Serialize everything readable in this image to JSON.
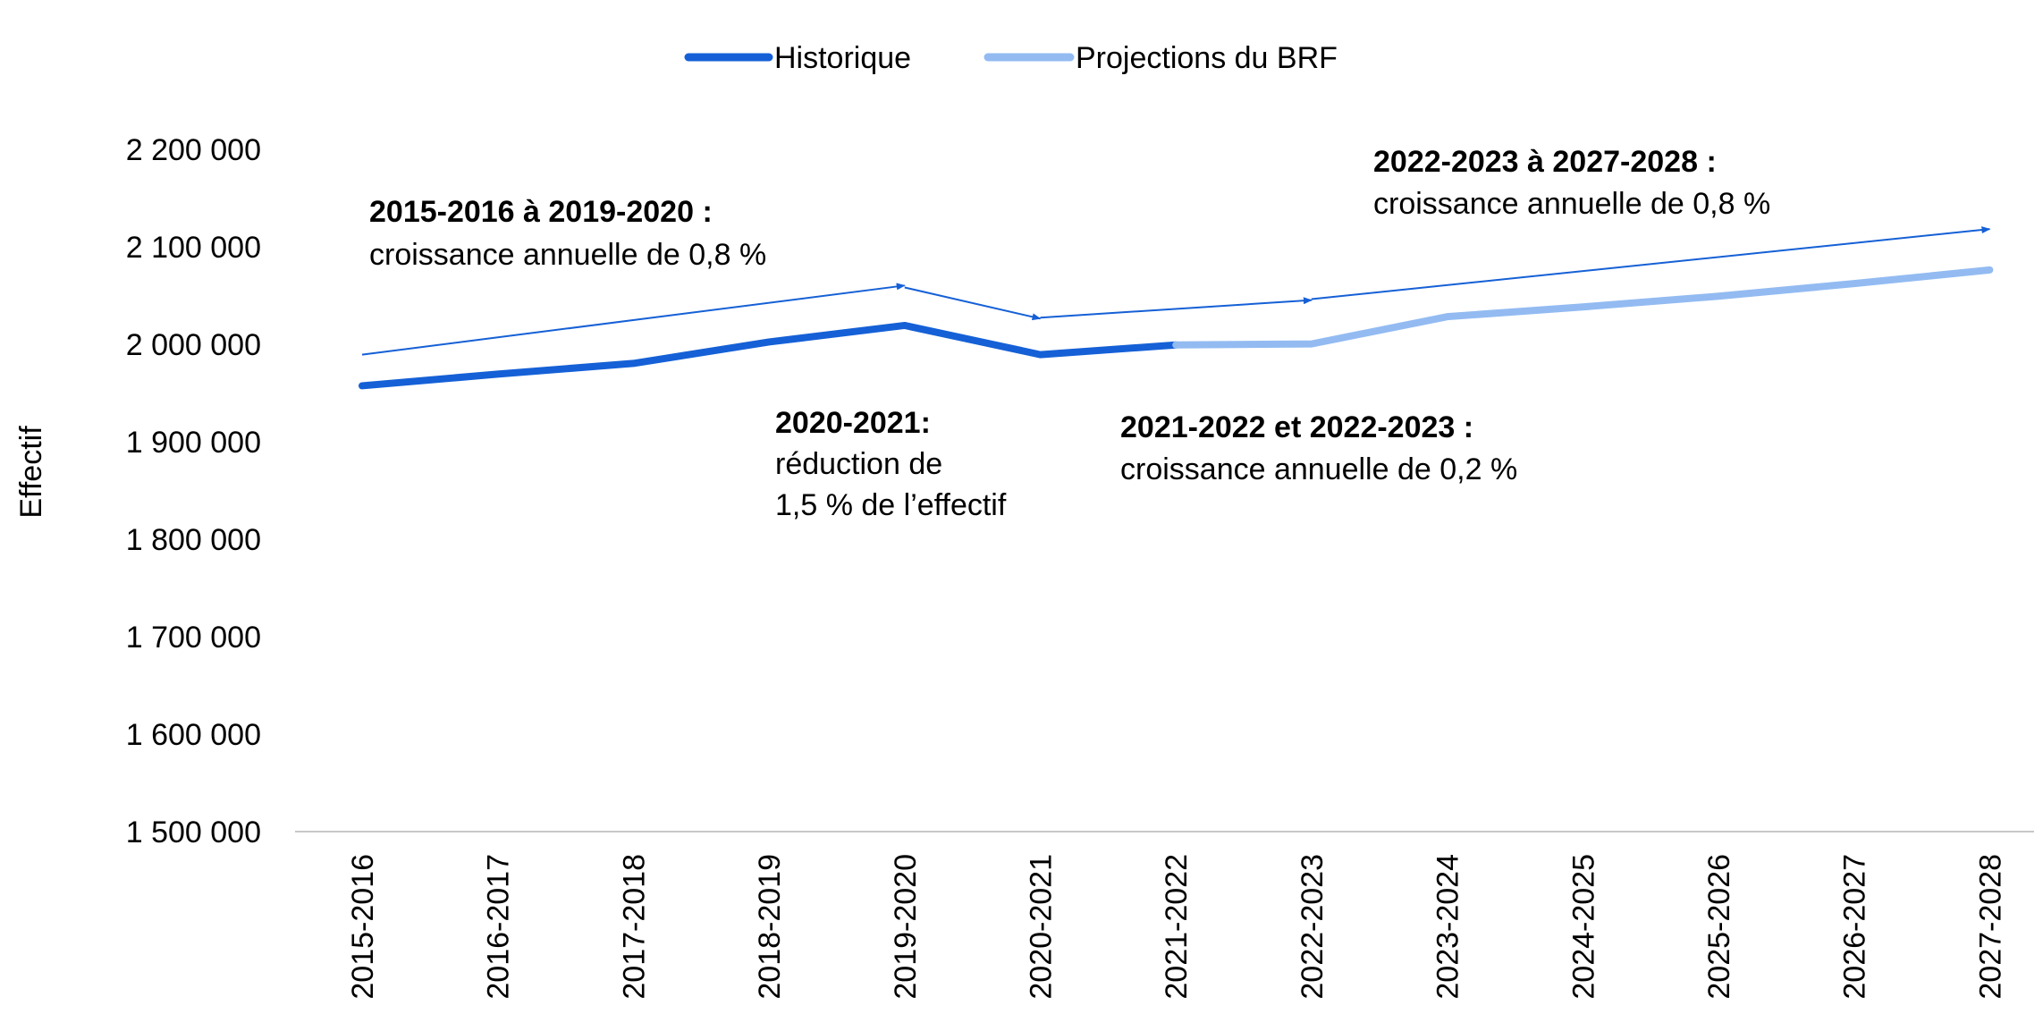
{
  "chart_data": {
    "type": "line",
    "ylabel": "Effectif",
    "xlabel": "",
    "ylim": [
      1500000,
      2200000
    ],
    "yticks": [
      1500000,
      1600000,
      1700000,
      1800000,
      1900000,
      2000000,
      2100000,
      2200000
    ],
    "ytick_labels": [
      "1 500 000",
      "1 600 000",
      "1 700 000",
      "1 800 000",
      "1 900 000",
      "2 000 000",
      "2 100 000",
      "2 200 000"
    ],
    "categories": [
      "2015-2016",
      "2016-2017",
      "2017-2018",
      "2018-2019",
      "2019-2020",
      "2020-2021",
      "2021-2022",
      "2022-2023",
      "2023-2024",
      "2024-2025",
      "2025-2026",
      "2026-2027",
      "2027-2028"
    ],
    "series": [
      {
        "name": "Historique",
        "color": "#1560d6",
        "values": [
          1958000,
          1970000,
          1981000,
          2003000,
          2020000,
          1990000,
          2000000,
          null,
          null,
          null,
          null,
          null,
          null
        ]
      },
      {
        "name": "Projections du BRF",
        "color": "#93bbf2",
        "values": [
          null,
          null,
          null,
          null,
          null,
          null,
          2000000,
          2001000,
          2029000,
          2039000,
          2050000,
          2063000,
          2077000
        ]
      }
    ],
    "legend_position": "top-center",
    "grid": false,
    "trend_arrows": [
      {
        "from": [
          "2015-2016",
          1990000
        ],
        "to": [
          "2019-2020",
          2061000
        ]
      },
      {
        "from": [
          "2019-2020",
          2059000
        ],
        "to": [
          "2020-2021",
          2027000
        ]
      },
      {
        "from": [
          "2020-2021",
          2028000
        ],
        "to": [
          "2022-2023",
          2046000
        ]
      },
      {
        "from": [
          "2022-2023",
          2047000
        ],
        "to": [
          "2027-2028",
          2119000
        ]
      }
    ],
    "annotations": [
      {
        "id": "a1",
        "bold": "2015-2016 à 2019-2020 :",
        "lines": [
          "croissance annuelle de 0,8 %"
        ]
      },
      {
        "id": "a2",
        "bold": "2020-2021:",
        "lines": [
          "réduction de",
          "1,5 % de l’effectif"
        ]
      },
      {
        "id": "a3",
        "bold": "2021-2022 et 2022-2023 :",
        "lines": [
          "croissance annuelle de 0,2 %"
        ]
      },
      {
        "id": "a4",
        "bold": "2022-2023 à 2027-2028 :",
        "lines": [
          "croissance annuelle de 0,8 %"
        ]
      }
    ]
  }
}
